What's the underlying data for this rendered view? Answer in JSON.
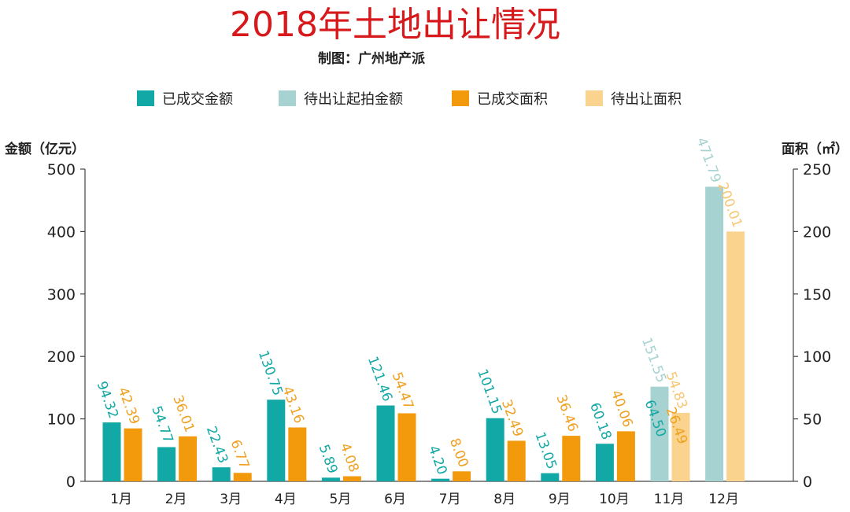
{
  "chart_data": {
    "type": "bar",
    "title": "2018年土地出让情况",
    "subtitle": "制图：广州地产派",
    "ylabel_left": "金额（亿元）",
    "ylabel_right": "面积（㎡）",
    "ylim_left": [
      0,
      500
    ],
    "ylim_right": [
      0,
      250
    ],
    "yticks_left": [
      "0",
      "100",
      "200",
      "300",
      "400",
      "500"
    ],
    "yticks_right": [
      "0",
      "50",
      "100",
      "150",
      "200",
      "250"
    ],
    "categories": [
      "1月",
      "2月",
      "3月",
      "4月",
      "5月",
      "6月",
      "7月",
      "8月",
      "9月",
      "10月",
      "11月",
      "12月"
    ],
    "series": [
      {
        "name": "已成交金额",
        "axis": "left",
        "color": "#12a8a6",
        "values": [
          94.32,
          54.77,
          22.43,
          130.75,
          5.89,
          121.46,
          4.2,
          101.15,
          13.05,
          60.18,
          64.5,
          null
        ],
        "labels": [
          "94.32",
          "54.77",
          "22.43",
          "130.75",
          "5.89",
          "121.46",
          "4.20",
          "101.15",
          "13.05",
          "60.18",
          "64.50",
          ""
        ]
      },
      {
        "name": "待出让起拍金额",
        "axis": "left",
        "color": "#a6d3d1",
        "values": [
          null,
          null,
          null,
          null,
          null,
          null,
          null,
          null,
          null,
          null,
          151.55,
          471.79
        ],
        "labels": [
          "",
          "",
          "",
          "",
          "",
          "",
          "",
          "",
          "",
          "",
          "151.55",
          "471.79"
        ]
      },
      {
        "name": "已成交面积",
        "axis": "right",
        "color": "#f39a0c",
        "values": [
          42.39,
          36.01,
          6.77,
          43.16,
          4.08,
          54.47,
          8.0,
          32.49,
          36.46,
          40.06,
          26.49,
          null
        ],
        "labels": [
          "42.39",
          "36.01",
          "6.77",
          "43.16",
          "4.08",
          "54.47",
          "8.00",
          "32.49",
          "36.46",
          "40.06",
          "26.49",
          ""
        ]
      },
      {
        "name": "待出让面积",
        "axis": "right",
        "color": "#fad48e",
        "values": [
          null,
          null,
          null,
          null,
          null,
          null,
          null,
          null,
          null,
          null,
          54.83,
          200.01
        ],
        "labels": [
          "",
          "",
          "",
          "",
          "",
          "",
          "",
          "",
          "",
          "",
          "54.83",
          "200.01"
        ]
      }
    ],
    "legend_position": "top",
    "grid": false
  }
}
